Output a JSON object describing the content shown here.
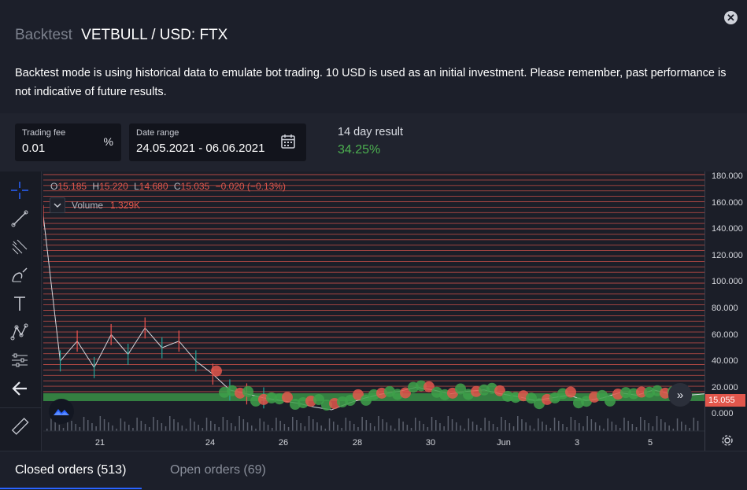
{
  "header": {
    "mode_label": "Backtest",
    "pair_label": "VETBULL / USD: FTX",
    "description": "Backtest mode is using historical data to emulate bot trading. 10 USD is used as an initial investment. Please remember, past performance is not indicative of future results."
  },
  "controls": {
    "trading_fee": {
      "label": "Trading fee",
      "value": "0.01",
      "suffix": "%"
    },
    "date_range": {
      "label": "Date range",
      "value": "24.05.2021 - 06.06.2021"
    },
    "result": {
      "label": "14 day result",
      "value": "34.25%"
    }
  },
  "chart": {
    "ohlc": {
      "o_key": "O",
      "o": "15.185",
      "h_key": "H",
      "h": "15.220",
      "l_key": "L",
      "l": "14.680",
      "c_key": "C",
      "c": "15.035",
      "change": "−0.020 (−0.13%)"
    },
    "volume": {
      "label": "Volume",
      "value": "1.329K"
    },
    "last_price": "15.055",
    "y_ticks": [
      "180.000",
      "160.000",
      "140.000",
      "120.000",
      "100.000",
      "80.000",
      "60.000",
      "40.000",
      "20.000",
      "0.000"
    ],
    "x_ticks": [
      "21",
      "24",
      "26",
      "28",
      "30",
      "Jun",
      "3",
      "5"
    ],
    "colors": {
      "up": "#26a69a",
      "down": "#ef5350",
      "buy_marker": "#3ea04a",
      "sell_marker": "#e2574c",
      "accent": "#2962ff"
    }
  },
  "chart_data": {
    "type": "line",
    "series": [
      {
        "values": [
          150,
          40,
          55,
          35,
          60,
          45,
          65,
          50,
          55,
          40,
          30,
          18,
          15,
          12,
          10,
          8,
          5,
          3,
          8,
          12,
          15,
          17,
          20,
          18,
          15,
          17,
          18,
          15,
          13,
          10,
          12,
          14,
          10,
          12,
          16,
          14,
          18,
          15,
          14,
          15
        ]
      }
    ],
    "ylim": [
      0,
      180
    ],
    "x_ticks": [
      "21",
      "24",
      "26",
      "28",
      "30",
      "Jun",
      "3",
      "5"
    ]
  },
  "toolbar": {
    "tools": [
      "crosshair-icon",
      "trend-line-icon",
      "fib-icon",
      "brush-icon",
      "text-icon",
      "pattern-icon",
      "measure-icon",
      "back-arrow-icon",
      "ruler-icon"
    ]
  },
  "tabs": [
    {
      "label": "Closed orders (513)"
    },
    {
      "label": "Open orders (69)"
    }
  ]
}
